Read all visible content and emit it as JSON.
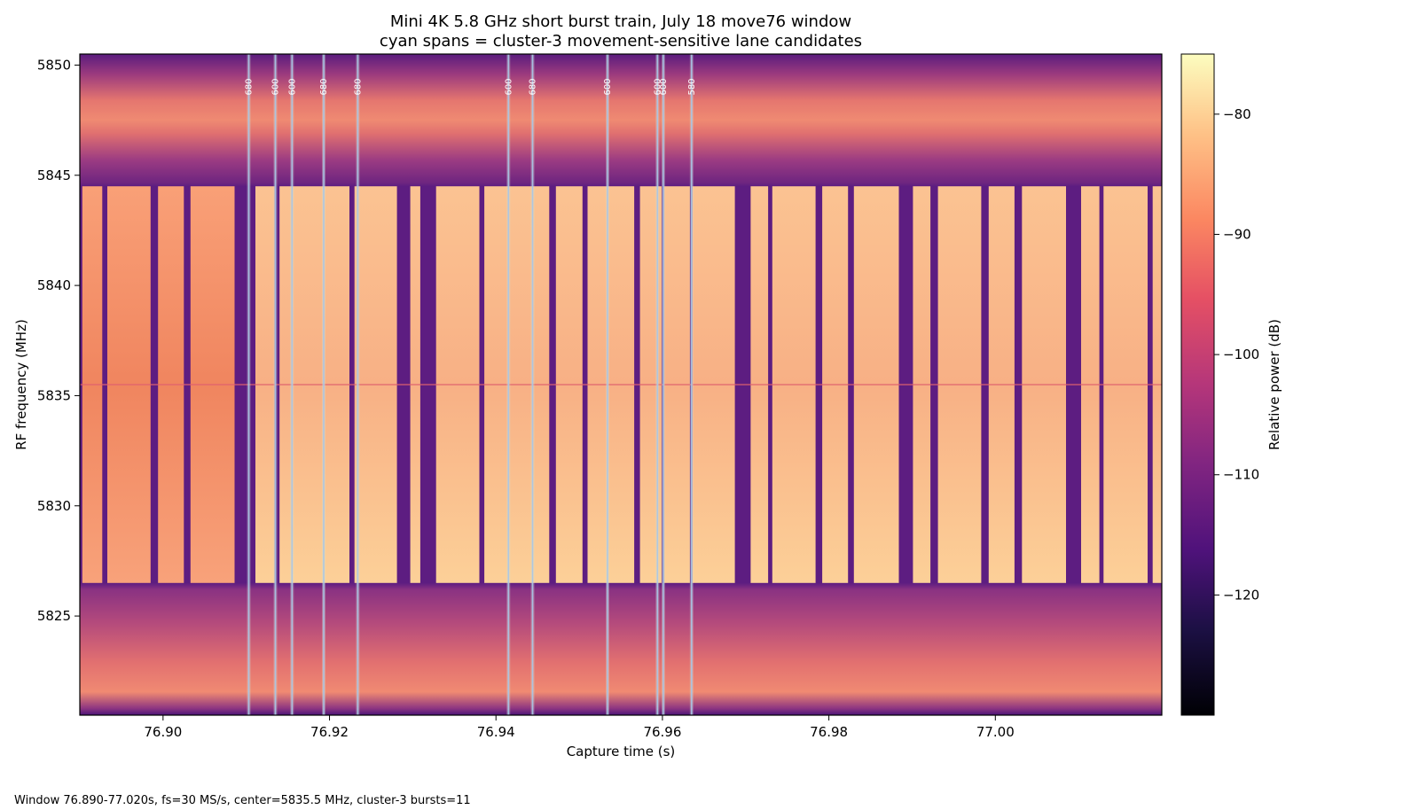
{
  "chart_data": {
    "type": "heatmap",
    "title": "Mini 4K 5.8 GHz short burst train, July 18 move76 window",
    "subtitle": "cyan spans = cluster-3 movement-sensitive lane candidates",
    "xlabel": "Capture time (s)",
    "ylabel": "RF frequency (MHz)",
    "xlim": [
      76.89,
      77.02
    ],
    "ylim": [
      5820.5,
      5850.5
    ],
    "xticks": [
      76.9,
      76.92,
      76.94,
      76.96,
      76.98,
      77.0
    ],
    "xtick_labels": [
      "76.90",
      "76.92",
      "76.94",
      "76.96",
      "76.98",
      "77.00"
    ],
    "yticks": [
      5825,
      5830,
      5835,
      5840,
      5845,
      5850
    ],
    "ytick_labels": [
      "5825",
      "5830",
      "5835",
      "5840",
      "5845",
      "5850"
    ],
    "colorbar": {
      "label": "Relative power (dB)",
      "range": [
        -130,
        -75
      ],
      "ticks": [
        -80,
        -90,
        -100,
        -110,
        -120
      ],
      "tick_labels": [
        "−80",
        "−90",
        "−100",
        "−110",
        "−120"
      ],
      "colormap": "magma"
    },
    "background_band": {
      "low_mhz": 5820.5,
      "high_mhz": 5850.5,
      "level_db": -92
    },
    "burst_band": {
      "low_mhz": 5826.5,
      "high_mhz": 5844.5
    },
    "bursts": [
      {
        "start": 76.8903,
        "end": 76.8927,
        "level_db": -87
      },
      {
        "start": 76.8933,
        "end": 76.8985,
        "level_db": -88
      },
      {
        "start": 76.8994,
        "end": 76.9025,
        "level_db": -86
      },
      {
        "start": 76.9033,
        "end": 76.9086,
        "level_db": -88
      },
      {
        "start": 76.9111,
        "end": 76.9134,
        "level_db": -80
      },
      {
        "start": 76.914,
        "end": 76.9224,
        "level_db": -80
      },
      {
        "start": 76.923,
        "end": 76.9281,
        "level_db": -80
      },
      {
        "start": 76.9297,
        "end": 76.9309,
        "level_db": -80
      },
      {
        "start": 76.9328,
        "end": 76.938,
        "level_db": -81
      },
      {
        "start": 76.9386,
        "end": 76.9464,
        "level_db": -80
      },
      {
        "start": 76.9472,
        "end": 76.9504,
        "level_db": -80
      },
      {
        "start": 76.951,
        "end": 76.9566,
        "level_db": -80
      },
      {
        "start": 76.9573,
        "end": 76.9599,
        "level_db": -80
      },
      {
        "start": 76.9602,
        "end": 76.9633,
        "level_db": -80
      },
      {
        "start": 76.9636,
        "end": 76.9687,
        "level_db": -80
      },
      {
        "start": 76.9706,
        "end": 76.9727,
        "level_db": -81
      },
      {
        "start": 76.9732,
        "end": 76.9784,
        "level_db": -81
      },
      {
        "start": 76.9792,
        "end": 76.9823,
        "level_db": -82
      },
      {
        "start": 76.983,
        "end": 76.9884,
        "level_db": -82
      },
      {
        "start": 76.9901,
        "end": 76.9922,
        "level_db": -81
      },
      {
        "start": 76.9931,
        "end": 76.9983,
        "level_db": -81
      },
      {
        "start": 76.9992,
        "end": 77.0023,
        "level_db": -82
      },
      {
        "start": 77.0032,
        "end": 77.0085,
        "level_db": -82
      },
      {
        "start": 77.0103,
        "end": 77.0125,
        "level_db": -82
      },
      {
        "start": 77.013,
        "end": 77.0183,
        "level_db": -82
      },
      {
        "start": 77.0189,
        "end": 77.02,
        "level_db": -82
      }
    ],
    "cyan_spans": [
      {
        "t": 76.9103,
        "label": "680"
      },
      {
        "t": 76.9135,
        "label": "600"
      },
      {
        "t": 76.9155,
        "label": "600"
      },
      {
        "t": 76.9193,
        "label": "680"
      },
      {
        "t": 76.9234,
        "label": "680"
      },
      {
        "t": 76.9415,
        "label": "600"
      },
      {
        "t": 76.9444,
        "label": "680"
      },
      {
        "t": 76.9534,
        "label": "600"
      },
      {
        "t": 76.9594,
        "label": "600"
      },
      {
        "t": 76.9601,
        "label": "600"
      },
      {
        "t": 76.9635,
        "label": "580"
      }
    ],
    "grid": false,
    "legend": "none"
  },
  "footer_text": "Window 76.890-77.020s, fs=30 MS/s, center=5835.5 MHz, cluster-3 bursts=11",
  "colors": {
    "background_band": "#e8706e",
    "edge_band": "#7a2a82",
    "burst_high": "#fcc694",
    "burst_low": "#f59a74",
    "gap": "#5d1d81",
    "cyan_span": "#a8c6e8",
    "cyan_span_fill": "#cfe0d0"
  }
}
